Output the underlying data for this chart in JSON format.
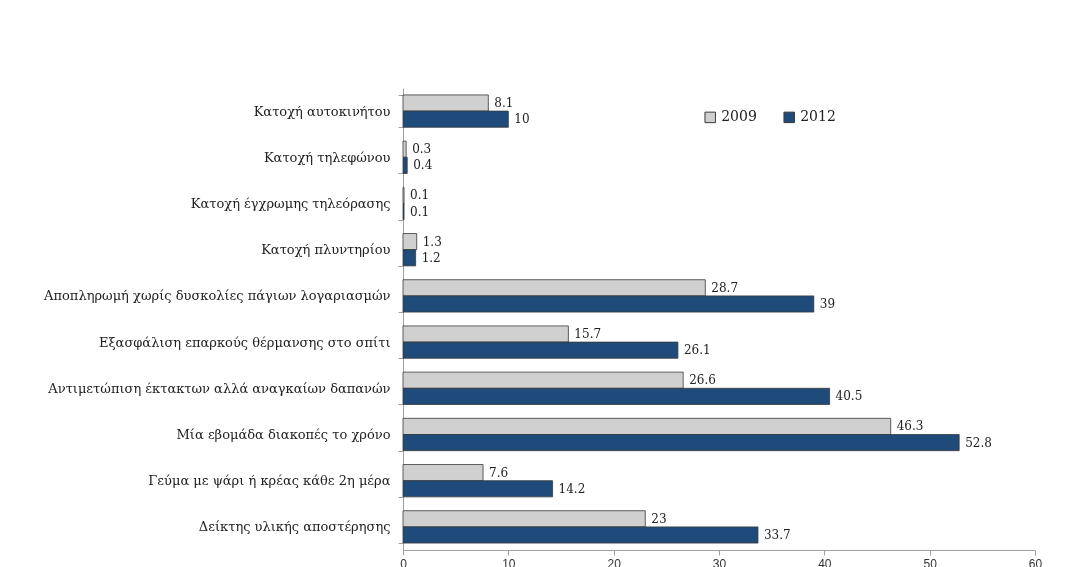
{
  "chart_data": {
    "type": "bar",
    "orientation": "horizontal",
    "categories": [
      "Κατοχή αυτοκινήτου",
      "Κατοχή τηλεφώνου",
      "Κατοχή έγχρωμης τηλεόρασης",
      "Κατοχή πλυντηρίου",
      "Αποπληρωμή χωρίς δυσκολίες πάγιων λογαριασμών",
      "Εξασφάλιση επαρκούς θέρμανσης στο σπίτι",
      "Αντιμετώπιση έκτακτων αλλά αναγκαίων δαπανών",
      "Μία εβομάδα διακοπές το χρόνο",
      "Γεύμα με ψάρι ή κρέας κάθε 2η μέρα",
      "Δείκτης υλικής αποστέρησης"
    ],
    "series": [
      {
        "name": "2009",
        "color": "#d0d0d0",
        "values": [
          8.1,
          0.3,
          0.1,
          1.3,
          28.7,
          15.7,
          26.6,
          46.3,
          7.6,
          23
        ]
      },
      {
        "name": "2012",
        "color": "#1f4b7a",
        "values": [
          10,
          0.4,
          0.1,
          1.2,
          39,
          26.1,
          40.5,
          52.8,
          14.2,
          33.7
        ]
      }
    ],
    "xlim": [
      0,
      60
    ],
    "xticks": [
      0,
      10,
      20,
      30,
      40,
      50,
      60
    ],
    "data_labels": true,
    "legend": "top right"
  }
}
